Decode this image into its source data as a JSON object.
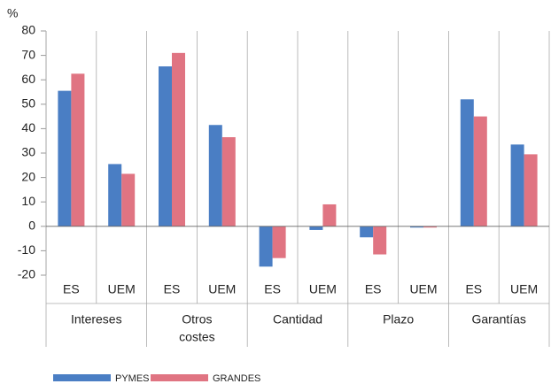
{
  "chart_data": {
    "type": "bar",
    "unit_label": "%",
    "categories": [
      "ES",
      "UEM",
      "ES",
      "UEM",
      "ES",
      "UEM",
      "ES",
      "UEM",
      "ES",
      "UEM"
    ],
    "groups": [
      [
        "Intereses"
      ],
      [
        "Otros",
        "costes"
      ],
      [
        "Cantidad"
      ],
      [
        "Plazo"
      ],
      [
        "Garantías"
      ]
    ],
    "series": [
      {
        "name": "PYMES",
        "color": "#4a7ec4",
        "values": [
          55.5,
          25.5,
          65.5,
          41.5,
          -16.5,
          -1.5,
          -4.5,
          -0.5,
          52,
          33.5
        ]
      },
      {
        "name": "GRANDES",
        "color": "#e07482",
        "values": [
          62.5,
          21.5,
          71,
          36.5,
          -13,
          9,
          -11.5,
          -0.5,
          45,
          29.5
        ]
      }
    ],
    "ylim": [
      -20,
      80
    ],
    "yticks": [
      -20,
      -10,
      0,
      10,
      20,
      30,
      40,
      50,
      60,
      70,
      80
    ]
  }
}
